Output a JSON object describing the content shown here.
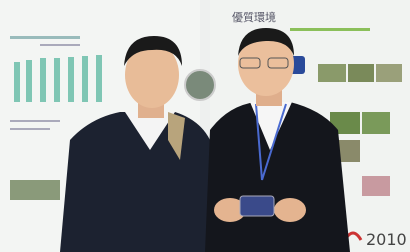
{
  "poster": {
    "heading": "優質環境",
    "year_mark": "2010"
  }
}
